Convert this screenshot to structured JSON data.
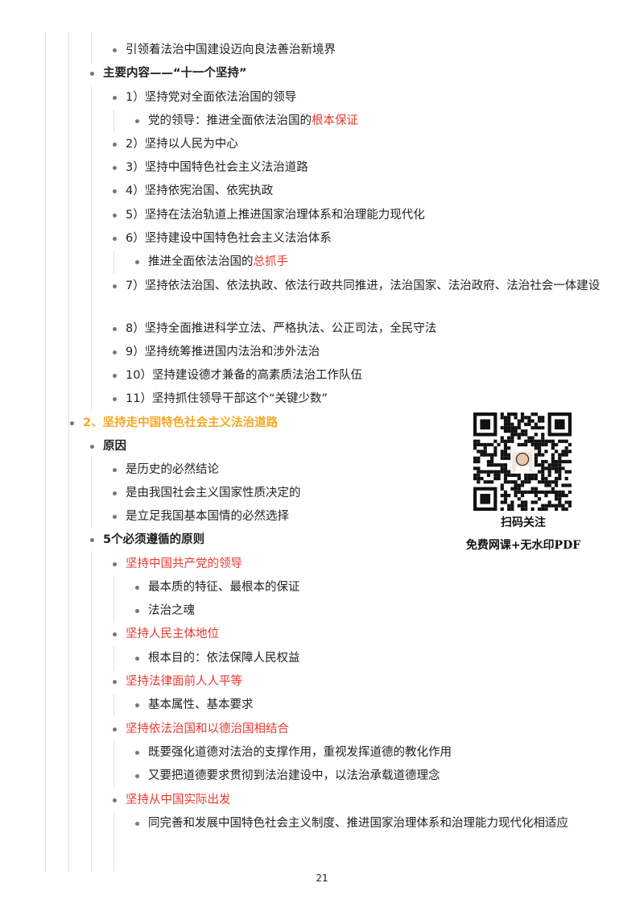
{
  "colors": {
    "highlight_red": "#e8382f",
    "section_orange": "#f5a623",
    "bullet": "#777777"
  },
  "outline": [
    {
      "level": 2,
      "segments": [
        {
          "text": "引领着法治中国建设迈向良法善治新境界"
        }
      ]
    },
    {
      "level": 1,
      "style": "bold",
      "segments": [
        {
          "text": "主要内容——“十一个坚持”"
        }
      ]
    },
    {
      "level": 2,
      "segments": [
        {
          "text": "1）坚持党对全面依法治国的领导"
        }
      ]
    },
    {
      "level": 3,
      "segments": [
        {
          "text": "党的领导：推进全面依法治国的"
        },
        {
          "text": "根本保证",
          "color": "red"
        }
      ]
    },
    {
      "level": 2,
      "segments": [
        {
          "text": "2）坚持以人民为中心"
        }
      ]
    },
    {
      "level": 2,
      "segments": [
        {
          "text": "3）坚持中国特色社会主义法治道路"
        }
      ]
    },
    {
      "level": 2,
      "segments": [
        {
          "text": "4）坚持依宪治国、依宪执政"
        }
      ]
    },
    {
      "level": 2,
      "segments": [
        {
          "text": "5）坚持在法治轨道上推进国家治理体系和治理能力现代化"
        }
      ]
    },
    {
      "level": 2,
      "segments": [
        {
          "text": "6）坚持建设中国特色社会主义法治体系"
        }
      ]
    },
    {
      "level": 3,
      "segments": [
        {
          "text": "推进全面依法治国的"
        },
        {
          "text": "总抓手",
          "color": "red"
        }
      ]
    },
    {
      "level": 2,
      "segments": [
        {
          "text": "7）坚持依法治国、依法执政、依法行政共同推进，法治国家、法治政府、法治社会一体建设"
        }
      ]
    },
    {
      "level": 2,
      "segments": [
        {
          "text": "8）坚持全面推进科学立法、严格执法、公正司法，全民守法"
        }
      ]
    },
    {
      "level": 2,
      "segments": [
        {
          "text": "9）坚持统筹推进国内法治和涉外法治"
        }
      ]
    },
    {
      "level": 2,
      "segments": [
        {
          "text": "10）坚持建设德才兼备的高素质法治工作队伍"
        }
      ]
    },
    {
      "level": 2,
      "segments": [
        {
          "text": "11）坚持抓住领导干部这个“关键少数”"
        }
      ]
    },
    {
      "level": 0,
      "style": "orange",
      "segments": [
        {
          "text": "2、坚持走中国特色社会主义法治道路"
        }
      ]
    },
    {
      "level": 1,
      "style": "bold",
      "segments": [
        {
          "text": "原因"
        }
      ]
    },
    {
      "level": 2,
      "segments": [
        {
          "text": "是历史的必然结论"
        }
      ]
    },
    {
      "level": 2,
      "segments": [
        {
          "text": "是由我国社会主义国家性质决定的"
        }
      ]
    },
    {
      "level": 2,
      "segments": [
        {
          "text": "是立足我国基本国情的必然选择"
        }
      ]
    },
    {
      "level": 1,
      "style": "bold",
      "segments": [
        {
          "text": "5个必须遵循的原则"
        }
      ]
    },
    {
      "level": 2,
      "segments": [
        {
          "text": "坚持中国共产党的领导",
          "color": "red"
        }
      ]
    },
    {
      "level": 3,
      "segments": [
        {
          "text": "最本质的特征、最根本的保证"
        }
      ]
    },
    {
      "level": 3,
      "segments": [
        {
          "text": "法治之魂"
        }
      ]
    },
    {
      "level": 2,
      "segments": [
        {
          "text": "坚持人民主体地位",
          "color": "red"
        }
      ]
    },
    {
      "level": 3,
      "segments": [
        {
          "text": "根本目的：依法保障人民权益"
        }
      ]
    },
    {
      "level": 2,
      "segments": [
        {
          "text": "坚持法律面前人人平等",
          "color": "red"
        }
      ]
    },
    {
      "level": 3,
      "segments": [
        {
          "text": "基本属性、基本要求"
        }
      ]
    },
    {
      "level": 2,
      "segments": [
        {
          "text": "坚持依法治国和以德治国相结合",
          "color": "red"
        }
      ]
    },
    {
      "level": 3,
      "segments": [
        {
          "text": "既要强化道德对法治的支撑作用，重视发挥道德的教化作用"
        }
      ]
    },
    {
      "level": 3,
      "segments": [
        {
          "text": "又要把道德要求贯彻到法治建设中，以法治承载道德理念"
        }
      ]
    },
    {
      "level": 2,
      "segments": [
        {
          "text": "坚持从中国实际出发",
          "color": "red"
        }
      ]
    },
    {
      "level": 3,
      "segments": [
        {
          "text": "同完善和发展中国特色社会主义制度、推进国家治理体系和治理能力现代化相适应"
        }
      ]
    }
  ],
  "qr_promo": {
    "icon": "qr-code",
    "caption_1": "扫码关注",
    "caption_2": "免费网课+无水印PDF"
  },
  "page_number": "21"
}
